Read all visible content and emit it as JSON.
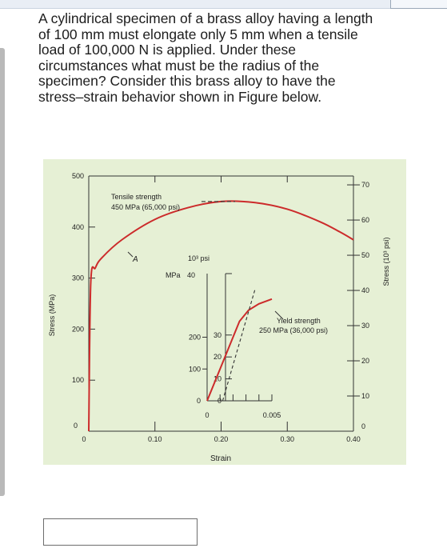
{
  "question": {
    "lines": [
      "A cylindrical specimen of a brass alloy having a length",
      "of 100 mm must elongate only 5 mm when a tensile",
      "load of 100,000 N is applied. Under these",
      "circumstances what must be the radius of the",
      "specimen? Consider this brass alloy to have the",
      "stress–strain behavior shown in Figure below."
    ]
  },
  "chart_data": {
    "type": "line",
    "xlabel": "Strain",
    "ylabel": "Stress (MPa)",
    "y2label": "Stress (10³ psi)",
    "xlim": [
      0,
      0.4
    ],
    "ylim": [
      0,
      500
    ],
    "x_ticks": [
      "0",
      "0.10",
      "0.20",
      "0.30",
      "0.40"
    ],
    "y_ticks": [
      "0",
      "100",
      "200",
      "300",
      "400",
      "500"
    ],
    "y2_ticks": [
      "0",
      "10",
      "20",
      "30",
      "40",
      "50",
      "60",
      "70"
    ],
    "background": "#e6f0d5",
    "curve_color": "#cc2b2b",
    "series": [
      {
        "x": [
          0,
          0.003,
          0.01,
          0.02,
          0.05,
          0.1,
          0.15,
          0.2,
          0.25,
          0.3,
          0.35,
          0.38,
          0.4
        ],
        "y": [
          0,
          290,
          320,
          340,
          375,
          415,
          438,
          450,
          448,
          435,
          410,
          390,
          375
        ]
      }
    ],
    "annotations": {
      "tensile_line1": "Tensile strength",
      "tensile_line2": "450 MPa (65,000 psi)",
      "point_A": "A",
      "yield_line1": "Yield strength",
      "yield_line2": "250 MPa (36,000 psi)",
      "inset_unit_mpa": "MPa",
      "inset_unit_psi": "10³ psi"
    },
    "inset": {
      "xlim": [
        0,
        0.005
      ],
      "ylim": [
        0,
        400
      ],
      "x_ticks": [
        "0",
        "0.005"
      ],
      "y_ticks": [
        "0",
        "100",
        "200"
      ],
      "y2_ticks": [
        "0",
        "10",
        "20",
        "30",
        "40"
      ],
      "series": [
        {
          "x": [
            0,
            0.0025,
            0.0032,
            0.004,
            0.005
          ],
          "y": [
            0,
            250,
            285,
            305,
            320
          ]
        }
      ],
      "yield_x": [
        0.0012,
        0.0037
      ],
      "yield_y": [
        0,
        250
      ]
    }
  },
  "answer": {
    "value": ""
  }
}
